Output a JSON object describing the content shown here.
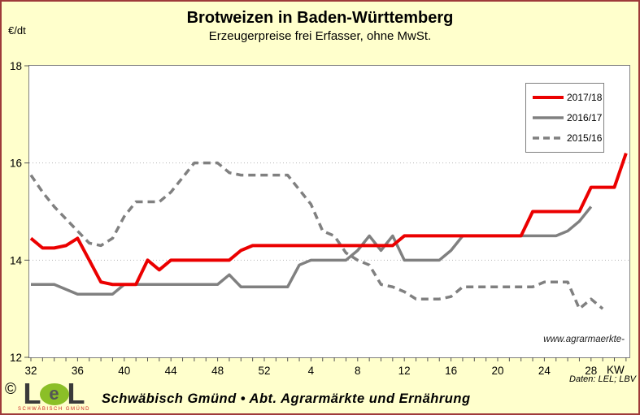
{
  "header": {
    "title": "Brotweizen in Baden-Württemberg",
    "subtitle": "Erzeugerpreise frei Erfasser, ohne MwSt.",
    "y_unit": "€/dt"
  },
  "axes": {
    "x_label": "KW"
  },
  "annotations": {
    "source": "Daten: LEL; LBV",
    "watermark": "www.agrarmaerkte-"
  },
  "footer": {
    "copyright": "©",
    "logo_letter_left": "L",
    "logo_letter_mid": "e",
    "logo_letter_right": "L",
    "logo_sub": "SCHWÄBISCH GMÜND",
    "text": "Schwäbisch Gmünd • Abt. Agrarmärkte und Ernährung"
  },
  "colors": {
    "background": "#FFFFCC",
    "series_red": "#EB0000",
    "series_gray": "#808080",
    "logo_green": "#8BBF27",
    "border": "#9E3A3A"
  },
  "chart_data": {
    "type": "line",
    "x_axis_unit": "KW",
    "y_axis_unit": "€/dt",
    "ylim": [
      12,
      18
    ],
    "y_ticks": [
      12,
      14,
      16,
      18
    ],
    "gridlines_at": [
      14,
      16
    ],
    "grid": "dotted horizontal at 14 and 16",
    "legend_position": "top-right inside plot",
    "x": [
      32,
      33,
      34,
      35,
      36,
      37,
      38,
      39,
      40,
      41,
      42,
      43,
      44,
      45,
      46,
      47,
      48,
      49,
      50,
      51,
      52,
      1,
      2,
      3,
      4,
      5,
      6,
      7,
      8,
      9,
      10,
      11,
      12,
      13,
      14,
      15,
      16,
      17,
      18,
      19,
      20,
      21,
      22,
      23,
      24,
      25,
      26,
      27,
      28,
      29,
      30,
      31
    ],
    "x_labeled_ticks": [
      32,
      36,
      40,
      44,
      48,
      52,
      4,
      8,
      12,
      16,
      20,
      24,
      28
    ],
    "series": [
      {
        "name": "2017/18",
        "color": "#EB0000",
        "width": 4,
        "dash": null,
        "values": [
          14.45,
          14.25,
          14.25,
          14.3,
          14.45,
          14.0,
          13.55,
          13.5,
          13.5,
          13.5,
          14.0,
          13.8,
          14.0,
          14.0,
          14.0,
          14.0,
          14.0,
          14.0,
          14.2,
          14.3,
          14.3,
          14.3,
          14.3,
          14.3,
          14.3,
          14.3,
          14.3,
          14.3,
          14.3,
          14.3,
          14.3,
          14.3,
          14.5,
          14.5,
          14.5,
          14.5,
          14.5,
          14.5,
          14.5,
          14.5,
          14.5,
          14.5,
          14.5,
          15.0,
          15.0,
          15.0,
          15.0,
          15.0,
          15.5,
          15.5,
          15.5,
          16.2
        ]
      },
      {
        "name": "2016/17",
        "color": "#808080",
        "width": 3.5,
        "dash": null,
        "values": [
          13.5,
          13.5,
          13.5,
          13.4,
          13.3,
          13.3,
          13.3,
          13.3,
          13.5,
          13.5,
          13.5,
          13.5,
          13.5,
          13.5,
          13.5,
          13.5,
          13.5,
          13.7,
          13.45,
          13.45,
          13.45,
          13.45,
          13.45,
          13.9,
          14.0,
          14.0,
          14.0,
          14.0,
          14.2,
          14.5,
          14.2,
          14.5,
          14.0,
          14.0,
          14.0,
          14.0,
          14.2,
          14.5,
          14.5,
          14.5,
          14.5,
          14.5,
          14.5,
          14.5,
          14.5,
          14.5,
          14.6,
          14.8,
          15.1,
          null,
          null,
          null
        ]
      },
      {
        "name": "2015/16",
        "color": "#808080",
        "width": 3.5,
        "dash": "9 6",
        "values": [
          15.75,
          15.4,
          15.1,
          14.85,
          14.6,
          14.35,
          14.3,
          14.45,
          14.9,
          15.2,
          15.2,
          15.2,
          15.4,
          15.7,
          16.0,
          16.0,
          16.0,
          15.8,
          15.75,
          15.75,
          15.75,
          15.75,
          15.75,
          15.45,
          15.15,
          14.6,
          14.5,
          14.15,
          14.0,
          13.9,
          13.5,
          13.45,
          13.35,
          13.2,
          13.2,
          13.2,
          13.25,
          13.45,
          13.45,
          13.45,
          13.45,
          13.45,
          13.45,
          13.45,
          13.55,
          13.55,
          13.55,
          13.0,
          13.2,
          13.0,
          null,
          null
        ]
      }
    ]
  }
}
